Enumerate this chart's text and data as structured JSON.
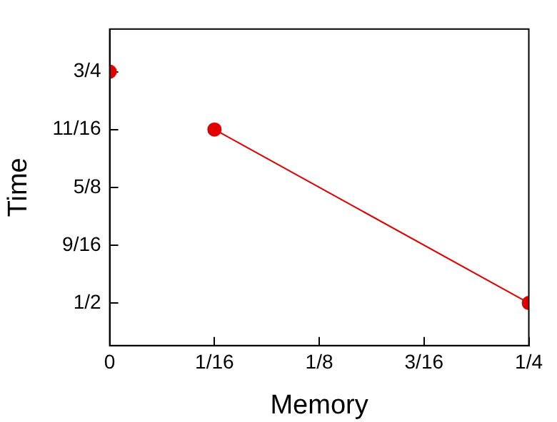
{
  "chart_data": {
    "type": "line",
    "xlabel": "Memory",
    "ylabel": "Time",
    "marker": "circle",
    "line_style": "solid",
    "grid": false,
    "legend": false,
    "xlim": [
      0,
      0.25
    ],
    "xticks": [
      0,
      {
        "value": 0.0625,
        "label": "1/16"
      },
      {
        "value": 0.125,
        "label": "1/8"
      },
      {
        "value": 0.1875,
        "label": "3/16"
      },
      {
        "value": 0.25,
        "label": "1/4"
      }
    ],
    "ylim": [
      0.454,
      0.796
    ],
    "yticks": [
      {
        "value": 0.5,
        "label": "1/2"
      },
      {
        "value": 0.5625,
        "label": "9/16"
      },
      {
        "value": 0.625,
        "label": "5/8"
      },
      {
        "value": 0.6875,
        "label": "11/16"
      },
      {
        "value": 0.75,
        "label": "3/4"
      }
    ],
    "series": [
      {
        "type": "scatter",
        "color": "#e00000",
        "x": [
          0
        ],
        "values": [
          0.75
        ]
      },
      {
        "type": "line",
        "color": "#e00000",
        "x": [
          0.0625,
          0.25
        ],
        "values": [
          0.6875,
          0.5
        ]
      }
    ]
  }
}
